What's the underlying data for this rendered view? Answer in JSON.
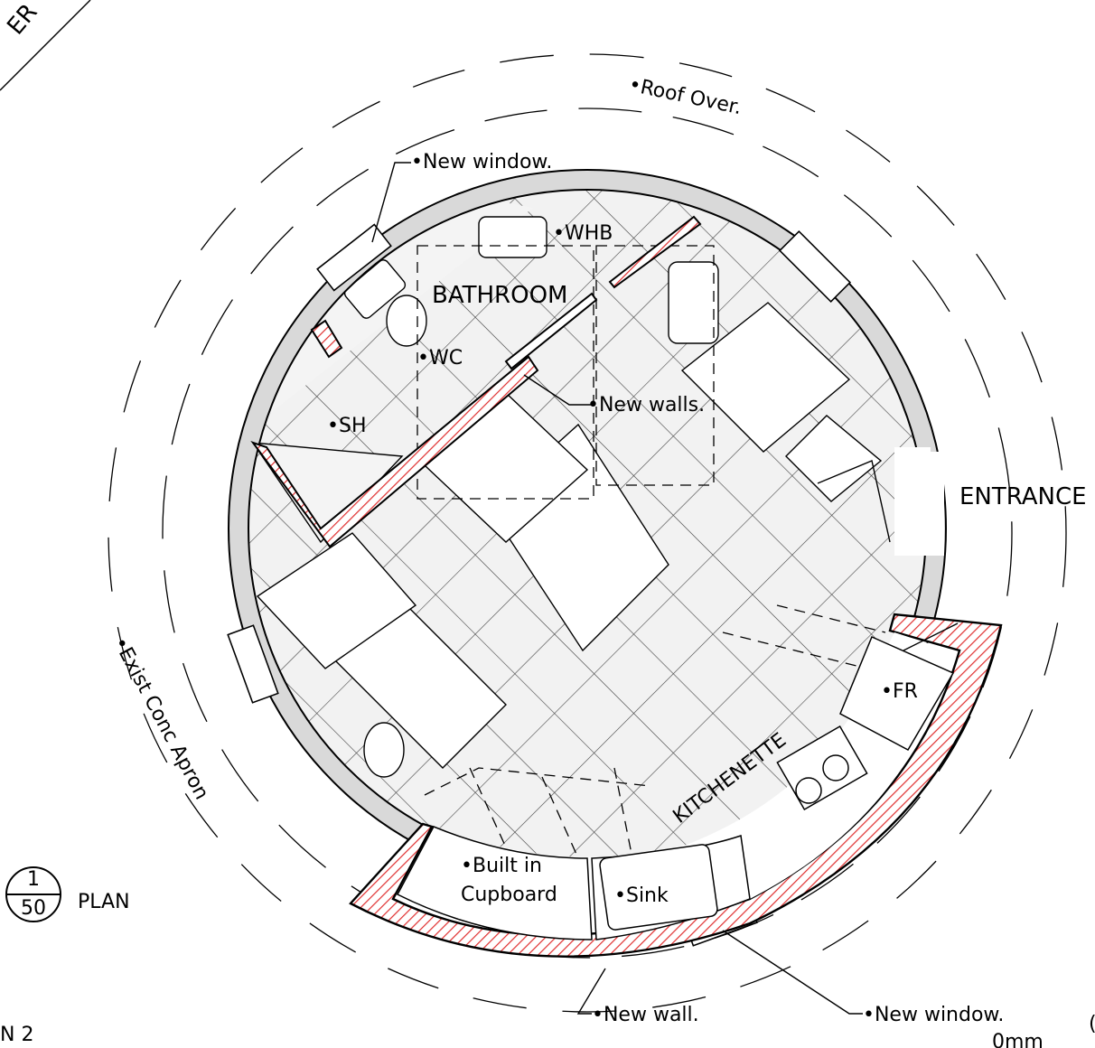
{
  "labels": {
    "corner": "ER",
    "roof": "•Roof Over.",
    "window_top": "•New window.",
    "whb": "•WHB",
    "bathroom": "BATHROOM",
    "wc": "•WC",
    "new_walls": "•New walls.",
    "shower": "•SH",
    "entrance": "ENTRANCE",
    "fridge": "•FR",
    "kitchenette": "KITCHENETTE",
    "apron": "•Exist Conc Apron",
    "cupboard": [
      "•Built in",
      "Cupboard"
    ],
    "sink": "•Sink",
    "scale_top": "1",
    "scale_bottom": "50",
    "plan": "PLAN",
    "sheet": "N 2",
    "new_wall": "•New wall.",
    "window_bottom": "•New window.",
    "scale_unit": "0mm",
    "edge": "("
  }
}
